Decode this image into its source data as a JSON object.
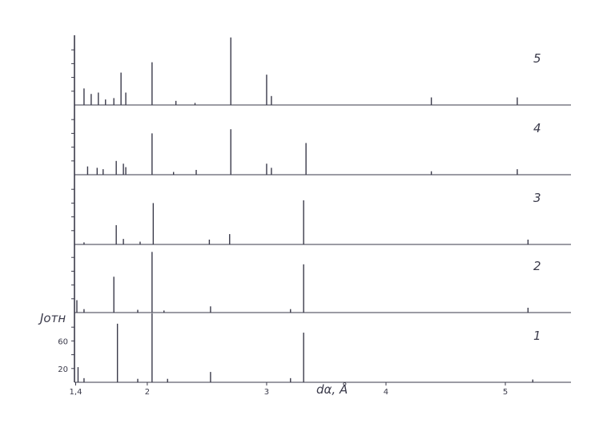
{
  "chart_data": {
    "type": "bar",
    "xlabel": "dα, Å",
    "ylabel": "Jотн",
    "x_tick_labels": [
      "1,4",
      "2",
      "3",
      "4",
      "5"
    ],
    "x_ticks": [
      1.4,
      2,
      3,
      4,
      5
    ],
    "y_tick_labels": [
      "20",
      "60"
    ],
    "y_ticks": [
      20,
      60
    ],
    "xlim": [
      1.39,
      5.55
    ],
    "ylim": [
      0,
      100
    ],
    "grid": false,
    "panels": [
      {
        "label": "1",
        "lines": [
          [
            1.42,
            22
          ],
          [
            1.47,
            6
          ],
          [
            1.75,
            85
          ],
          [
            1.92,
            5
          ],
          [
            2.04,
            100
          ],
          [
            2.17,
            5
          ],
          [
            2.53,
            15
          ],
          [
            3.2,
            6
          ],
          [
            3.31,
            72
          ],
          [
            5.23,
            4
          ]
        ]
      },
      {
        "label": "2",
        "lines": [
          [
            1.41,
            18
          ],
          [
            1.47,
            5
          ],
          [
            1.72,
            52
          ],
          [
            1.92,
            4
          ],
          [
            2.04,
            88
          ],
          [
            2.14,
            3
          ],
          [
            2.53,
            9
          ],
          [
            3.2,
            5
          ],
          [
            3.31,
            70
          ],
          [
            5.19,
            7
          ]
        ]
      },
      {
        "label": "3",
        "lines": [
          [
            1.47,
            3
          ],
          [
            1.74,
            28
          ],
          [
            1.8,
            8
          ],
          [
            1.94,
            4
          ],
          [
            2.05,
            60
          ],
          [
            2.52,
            7
          ],
          [
            2.69,
            15
          ],
          [
            3.31,
            64
          ],
          [
            5.19,
            7
          ]
        ]
      },
      {
        "label": "4",
        "lines": [
          [
            1.5,
            12
          ],
          [
            1.58,
            10
          ],
          [
            1.63,
            8
          ],
          [
            1.74,
            20
          ],
          [
            1.8,
            16
          ],
          [
            1.82,
            11
          ],
          [
            2.04,
            60
          ],
          [
            2.22,
            4
          ],
          [
            2.41,
            7
          ],
          [
            2.7,
            66
          ],
          [
            3.0,
            16
          ],
          [
            3.04,
            10
          ],
          [
            3.33,
            46
          ],
          [
            4.38,
            5
          ],
          [
            5.1,
            8
          ]
        ]
      },
      {
        "label": "5",
        "lines": [
          [
            1.47,
            24
          ],
          [
            1.53,
            16
          ],
          [
            1.59,
            18
          ],
          [
            1.65,
            8
          ],
          [
            1.72,
            10
          ],
          [
            1.78,
            47
          ],
          [
            1.82,
            18
          ],
          [
            2.04,
            62
          ],
          [
            2.24,
            6
          ],
          [
            2.4,
            3
          ],
          [
            2.7,
            98
          ],
          [
            3.0,
            44
          ],
          [
            3.04,
            13
          ],
          [
            4.38,
            11
          ],
          [
            5.1,
            11
          ]
        ]
      }
    ]
  }
}
